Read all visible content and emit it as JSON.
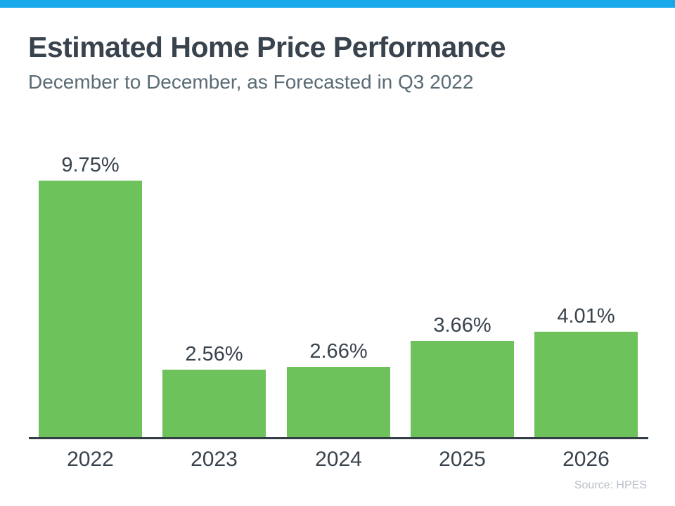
{
  "page": {
    "accent_color": "#18A9EA",
    "background_color": "#FFFFFF"
  },
  "header": {
    "title": "Estimated Home Price Performance",
    "subtitle": "December to December, as Forecasted in Q3 2022"
  },
  "chart_data": {
    "type": "bar",
    "categories": [
      "2022",
      "2023",
      "2024",
      "2025",
      "2026"
    ],
    "values": [
      9.75,
      2.56,
      2.66,
      3.66,
      4.01
    ],
    "value_labels": [
      "9.75%",
      "2.56%",
      "2.66%",
      "3.66%",
      "4.01%"
    ],
    "title": "Estimated Home Price Performance",
    "subtitle": "December to December, as Forecasted in Q3 2022",
    "xlabel": "",
    "ylabel": "",
    "ylim": [
      0,
      10.4
    ],
    "grid": false,
    "legend": false,
    "bar_color": "#6EC25B",
    "axis_color": "#343C44",
    "label_color": "#39434D"
  },
  "footer": {
    "source": "Source: HPES"
  }
}
